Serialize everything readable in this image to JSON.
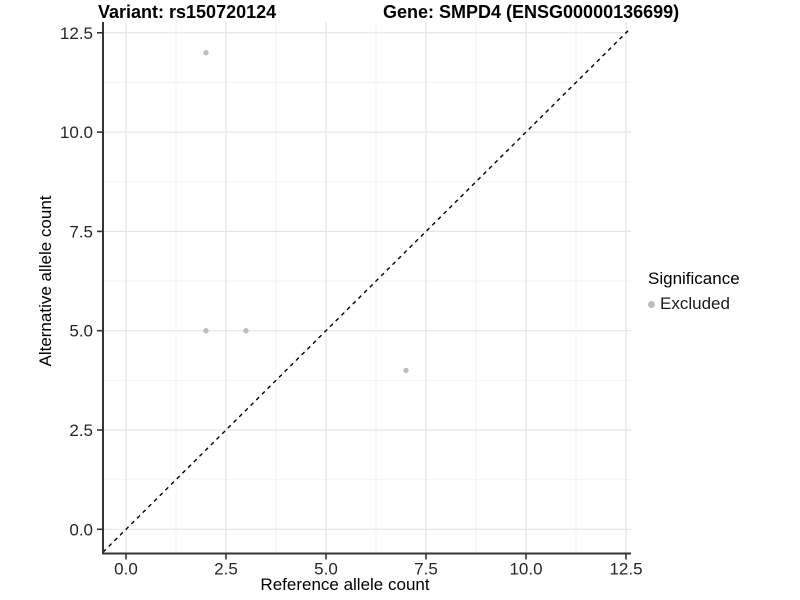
{
  "titles": {
    "left": "Variant: rs150720124",
    "right": "Gene: SMPD4 (ENSG00000136699)"
  },
  "chart_data": {
    "type": "scatter",
    "title_left": "Variant: rs150720124",
    "title_right": "Gene: SMPD4 (ENSG00000136699)",
    "xlabel": "Reference allele count",
    "ylabel": "Alternative allele count",
    "xlim": [
      -0.6,
      12.6
    ],
    "ylim": [
      -0.6,
      12.8
    ],
    "x_ticks": [
      0.0,
      2.5,
      5.0,
      7.5,
      10.0,
      12.5
    ],
    "y_ticks": [
      0.0,
      2.5,
      5.0,
      7.5,
      10.0,
      12.5
    ],
    "tick_decimals": 1,
    "grid": "major+minor",
    "series": [
      {
        "name": "Excluded",
        "marker": "circle",
        "color": "#bebebe",
        "points": [
          {
            "x": 2,
            "y": 12
          },
          {
            "x": 2,
            "y": 5
          },
          {
            "x": 3,
            "y": 5
          },
          {
            "x": 7,
            "y": 4
          }
        ]
      }
    ],
    "abline": {
      "slope": 1,
      "intercept": 0,
      "style": "dashed",
      "color": "#000000"
    },
    "legend": {
      "title": "Significance",
      "position": "right",
      "items": [
        {
          "label": "Excluded",
          "color": "#bebebe",
          "marker": "circle"
        }
      ]
    },
    "colors": {
      "background": "#ffffff",
      "grid_major": "#e4e4e4",
      "grid_minor": "#f2f2f2",
      "axis_line": "#333333",
      "tick_mark": "#333333",
      "tick_text": "#262626",
      "point": "#bebebe"
    }
  }
}
